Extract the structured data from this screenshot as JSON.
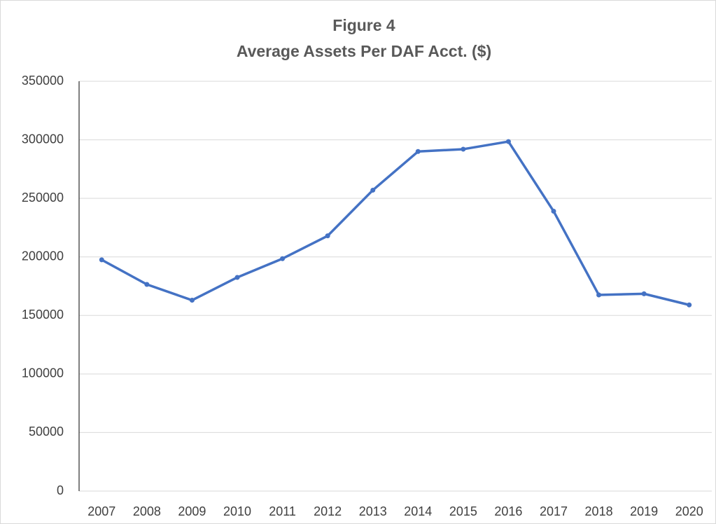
{
  "chart_data": {
    "type": "line",
    "title": "Figure 4",
    "subtitle": "Average Assets Per DAF Acct. ($)",
    "categories": [
      "2007",
      "2008",
      "2009",
      "2010",
      "2011",
      "2012",
      "2013",
      "2014",
      "2015",
      "2016",
      "2017",
      "2018",
      "2019",
      "2020"
    ],
    "series": [
      {
        "name": "Average Assets Per DAF Acct.",
        "color": "#4472c4",
        "values": [
          197500,
          176500,
          163000,
          182500,
          198500,
          218000,
          257000,
          290000,
          292000,
          298500,
          239000,
          167500,
          168500,
          159000
        ]
      }
    ],
    "ylim": [
      0,
      350000
    ],
    "yticks": [
      0,
      50000,
      100000,
      150000,
      200000,
      250000,
      300000,
      350000
    ],
    "grid": true
  }
}
